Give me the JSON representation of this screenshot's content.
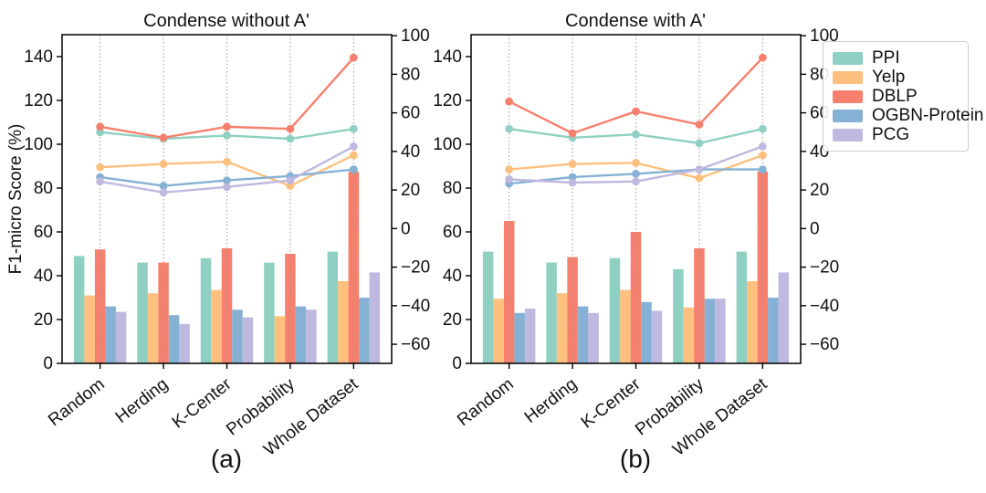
{
  "figure": {
    "ylabel": "F1-micro Score (%)",
    "captions": {
      "a": "(a)",
      "b": "(b)"
    },
    "legend": {
      "position": "top-right-outside",
      "items": [
        {
          "label": "PPI",
          "color": "#8fd0c2"
        },
        {
          "label": "Yelp",
          "color": "#fdc07e"
        },
        {
          "label": "DBLP",
          "color": "#f6806d"
        },
        {
          "label": "OGBN-Protein",
          "color": "#85b1d4"
        },
        {
          "label": "PCG",
          "color": "#bfb8df"
        }
      ]
    }
  },
  "chart_data": [
    {
      "type": "bar",
      "subtype": "grouped-bars-with-overlaid-lines",
      "title": "Condense without A'",
      "categories": [
        "Random",
        "Herding",
        "K-Center",
        "Probability",
        "Whole Dataset"
      ],
      "left_axis": {
        "label": "F1-micro Score (%)",
        "ticks": [
          0,
          20,
          40,
          60,
          80,
          100,
          120,
          140
        ],
        "range": [
          0,
          150
        ],
        "grid": "vertical-dotted-only"
      },
      "right_axis": {
        "ticks": [
          100,
          80,
          60,
          40,
          20,
          0,
          -20,
          -40,
          -60
        ],
        "range": [
          -70,
          100.6
        ]
      },
      "bar_series": [
        {
          "name": "PPI",
          "color": "#8fd0c2",
          "values": [
            49,
            46,
            48,
            46,
            51
          ]
        },
        {
          "name": "Yelp",
          "color": "#fdc07e",
          "values": [
            31,
            32,
            33.5,
            21.5,
            37.5
          ]
        },
        {
          "name": "DBLP",
          "color": "#f6806d",
          "values": [
            52,
            46,
            52.5,
            50,
            87.5
          ]
        },
        {
          "name": "OGBN-Protein",
          "color": "#85b1d4",
          "values": [
            26,
            22,
            24.5,
            26,
            30
          ]
        },
        {
          "name": "PCG",
          "color": "#bfb8df",
          "values": [
            23.5,
            18,
            21,
            24.5,
            41.5
          ]
        }
      ],
      "line_series_left_axis_units": [
        {
          "name": "PPI",
          "color": "#8fd0c2",
          "values": [
            105.5,
            102.5,
            104,
            102.5,
            107
          ]
        },
        {
          "name": "Yelp",
          "color": "#fdc07e",
          "values": [
            89.5,
            91,
            92,
            81,
            95
          ]
        },
        {
          "name": "DBLP",
          "color": "#f6806d",
          "values": [
            108,
            103,
            108,
            107,
            139.5
          ]
        },
        {
          "name": "OGBN-Protein",
          "color": "#85b1d4",
          "values": [
            85,
            81,
            83.5,
            85.5,
            88.5
          ]
        },
        {
          "name": "PCG",
          "color": "#bfb8df",
          "values": [
            83,
            78,
            80.5,
            83.5,
            99
          ]
        }
      ]
    },
    {
      "type": "bar",
      "subtype": "grouped-bars-with-overlaid-lines",
      "title": "Condense with A'",
      "categories": [
        "Random",
        "Herding",
        "K-Center",
        "Probability",
        "Whole Dataset"
      ],
      "left_axis": {
        "ticks": [
          0,
          20,
          40,
          60,
          80,
          100,
          120,
          140
        ],
        "range": [
          0,
          150
        ],
        "grid": "vertical-dotted-only"
      },
      "right_axis": {
        "ticks": [
          100,
          80,
          60,
          40,
          20,
          0,
          -20,
          -40,
          -60
        ],
        "range": [
          -70,
          100.6
        ]
      },
      "bar_series": [
        {
          "name": "PPI",
          "color": "#8fd0c2",
          "values": [
            51,
            46,
            48,
            43,
            51
          ]
        },
        {
          "name": "Yelp",
          "color": "#fdc07e",
          "values": [
            29.5,
            32,
            33.5,
            25.5,
            37.5
          ]
        },
        {
          "name": "DBLP",
          "color": "#f6806d",
          "values": [
            65,
            48.5,
            60,
            52.5,
            87.5
          ]
        },
        {
          "name": "OGBN-Protein",
          "color": "#85b1d4",
          "values": [
            23,
            26,
            28,
            29.5,
            30
          ]
        },
        {
          "name": "PCG",
          "color": "#bfb8df",
          "values": [
            25,
            23,
            24,
            29.5,
            41.5
          ]
        }
      ],
      "line_series_left_axis_units": [
        {
          "name": "PPI",
          "color": "#8fd0c2",
          "values": [
            107,
            103,
            104.5,
            100.5,
            107
          ]
        },
        {
          "name": "Yelp",
          "color": "#fdc07e",
          "values": [
            88.5,
            91,
            91.5,
            84.5,
            95
          ]
        },
        {
          "name": "DBLP",
          "color": "#f6806d",
          "values": [
            119.5,
            105,
            115,
            109,
            139.5
          ]
        },
        {
          "name": "OGBN-Protein",
          "color": "#85b1d4",
          "values": [
            82,
            85,
            86.5,
            88.5,
            88.5
          ]
        },
        {
          "name": "PCG",
          "color": "#bfb8df",
          "values": [
            84,
            82.5,
            83,
            88.5,
            99
          ]
        }
      ]
    }
  ]
}
